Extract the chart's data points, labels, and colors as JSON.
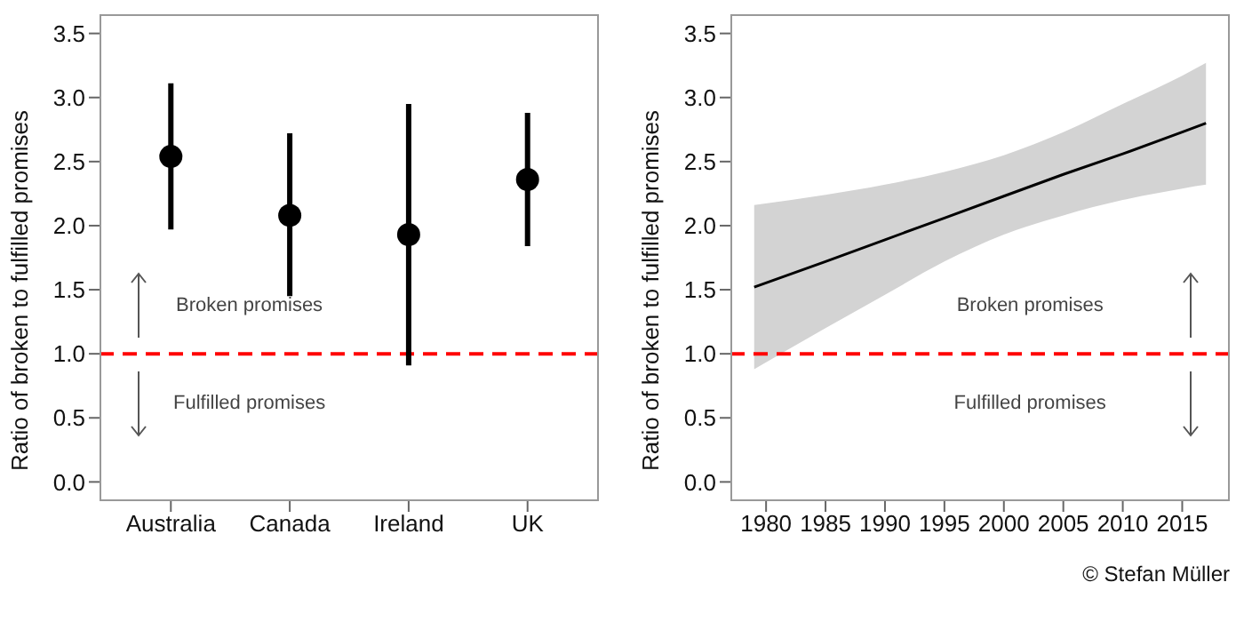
{
  "chart_data": [
    {
      "type": "scatter",
      "ylabel": "Ratio of broken to fulfilled promises",
      "categories": [
        "Australia",
        "Canada",
        "Ireland",
        "UK"
      ],
      "series": [
        {
          "color": "#000000",
          "values": [
            2.54,
            2.08,
            1.93,
            2.36
          ],
          "errors": [
            [
              1.97,
              3.11
            ],
            [
              1.45,
              2.72
            ],
            [
              0.91,
              2.95
            ],
            [
              1.84,
              2.88
            ]
          ]
        }
      ],
      "marker": "circle",
      "ylim": [
        -0.15,
        3.65
      ],
      "yticks": [
        {
          "value": 0,
          "label": "0.0"
        },
        0.5,
        {
          "value": 1,
          "label": "1.0"
        },
        1.5,
        {
          "value": 2,
          "label": "2.0"
        },
        2.5,
        {
          "value": 3,
          "label": "3.0"
        },
        3.5
      ],
      "ref_lines": [
        {
          "axis": "y",
          "value": 1,
          "color": "#ff0000",
          "line_style": "dashed"
        }
      ],
      "annotations": [
        "Broken promises",
        "Fulfilled promises"
      ],
      "grid": false
    },
    {
      "type": "line",
      "ylabel": "Ratio of broken to fulfilled promises",
      "x": [
        1979,
        1985,
        1990,
        1995,
        2000,
        2005,
        2010,
        2015,
        2017
      ],
      "series": [
        {
          "color": "#000000",
          "values": [
            1.52,
            1.72,
            1.89,
            2.06,
            2.23,
            2.4,
            2.56,
            2.73,
            2.8
          ],
          "lower": [
            0.88,
            1.2,
            1.46,
            1.72,
            1.93,
            2.08,
            2.2,
            2.29,
            2.32
          ],
          "upper": [
            2.16,
            2.24,
            2.32,
            2.42,
            2.55,
            2.73,
            2.95,
            3.17,
            3.27
          ]
        }
      ],
      "xlim": [
        1977,
        2019
      ],
      "xticks": [
        1980,
        1985,
        1990,
        1995,
        2000,
        2005,
        2010,
        2015
      ],
      "ylim": [
        -0.15,
        3.65
      ],
      "yticks": [
        {
          "value": 0,
          "label": "0.0"
        },
        0.5,
        {
          "value": 1,
          "label": "1.0"
        },
        1.5,
        {
          "value": 2,
          "label": "2.0"
        },
        2.5,
        {
          "value": 3,
          "label": "3.0"
        },
        3.5
      ],
      "ref_lines": [
        {
          "axis": "y",
          "value": 1,
          "color": "#ff0000",
          "line_style": "dashed"
        }
      ],
      "annotations": [
        "Broken promises",
        "Fulfilled promises",
        "© Stefan Müller"
      ],
      "grid": false
    }
  ]
}
